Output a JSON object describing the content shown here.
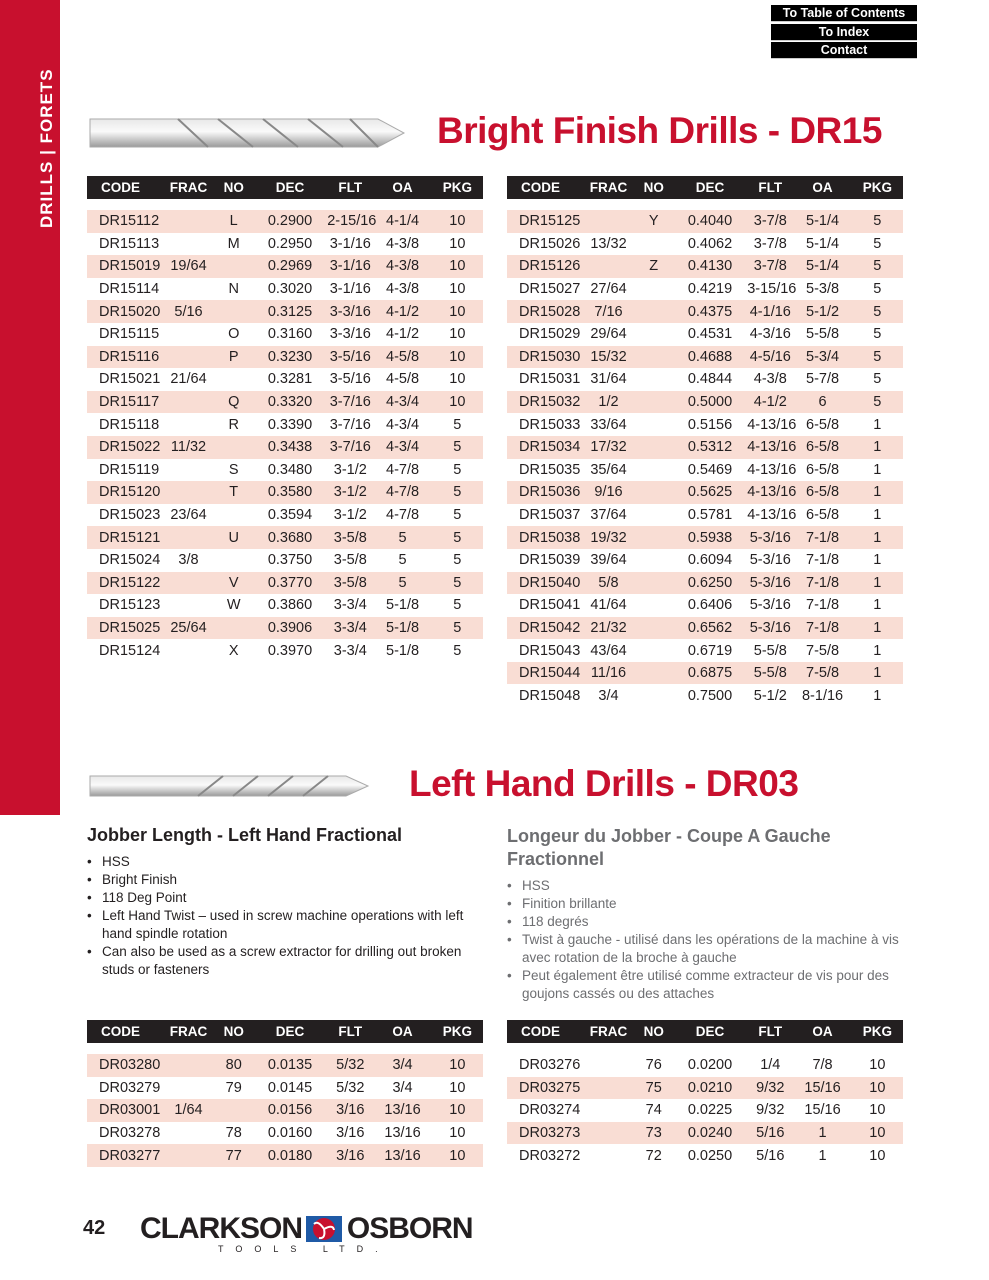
{
  "sidebar": {
    "label": "DRILLS  |  FORETS"
  },
  "nav": {
    "items": [
      "To Table of Contents",
      "To Index",
      "Contact"
    ]
  },
  "section1": {
    "title": "Bright Finish Drills - DR15"
  },
  "section2": {
    "title": "Left Hand Drills - DR03",
    "en": {
      "heading": "Jobber Length - Left Hand Fractional",
      "bullets": [
        "HSS",
        "Bright Finish",
        "118 Deg Point",
        "Left Hand Twist – used in screw machine operations with left hand spindle rotation",
        "Can also be used as a screw extractor for drilling out broken studs or fasteners"
      ]
    },
    "fr": {
      "heading": "Longeur du Jobber - Coupe A Gauche Fractionnel",
      "bullets": [
        "HSS",
        "Finition brillante",
        "118 degrés",
        "Twist à gauche - utilisé dans les opérations de la machine à vis avec rotation de la broche à gauche",
        "Peut également être utilisé comme extracteur de vis pour des goujons cassés ou des attaches"
      ]
    }
  },
  "columns": [
    "CODE",
    "FRAC",
    "NO",
    "DEC",
    "FLT",
    "OA",
    "PKG"
  ],
  "tables": {
    "dr15_left": [
      [
        "DR15112",
        "",
        "L",
        "0.2900",
        "2-15/16",
        "4-1/4",
        "10"
      ],
      [
        "DR15113",
        "",
        "M",
        "0.2950",
        "3-1/16",
        "4-3/8",
        "10"
      ],
      [
        "DR15019",
        "19/64",
        "",
        "0.2969",
        "3-1/16",
        "4-3/8",
        "10"
      ],
      [
        "DR15114",
        "",
        "N",
        "0.3020",
        "3-1/16",
        "4-3/8",
        "10"
      ],
      [
        "DR15020",
        "5/16",
        "",
        "0.3125",
        "3-3/16",
        "4-1/2",
        "10"
      ],
      [
        "DR15115",
        "",
        "O",
        "0.3160",
        "3-3/16",
        "4-1/2",
        "10"
      ],
      [
        "DR15116",
        "",
        "P",
        "0.3230",
        "3-5/16",
        "4-5/8",
        "10"
      ],
      [
        "DR15021",
        "21/64",
        "",
        "0.3281",
        "3-5/16",
        "4-5/8",
        "10"
      ],
      [
        "DR15117",
        "",
        "Q",
        "0.3320",
        "3-7/16",
        "4-3/4",
        "10"
      ],
      [
        "DR15118",
        "",
        "R",
        "0.3390",
        "3-7/16",
        "4-3/4",
        "5"
      ],
      [
        "DR15022",
        "11/32",
        "",
        "0.3438",
        "3-7/16",
        "4-3/4",
        "5"
      ],
      [
        "DR15119",
        "",
        "S",
        "0.3480",
        "3-1/2",
        "4-7/8",
        "5"
      ],
      [
        "DR15120",
        "",
        "T",
        "0.3580",
        "3-1/2",
        "4-7/8",
        "5"
      ],
      [
        "DR15023",
        "23/64",
        "",
        "0.3594",
        "3-1/2",
        "4-7/8",
        "5"
      ],
      [
        "DR15121",
        "",
        "U",
        "0.3680",
        "3-5/8",
        "5",
        "5"
      ],
      [
        "DR15024",
        "3/8",
        "",
        "0.3750",
        "3-5/8",
        "5",
        "5"
      ],
      [
        "DR15122",
        "",
        "V",
        "0.3770",
        "3-5/8",
        "5",
        "5"
      ],
      [
        "DR15123",
        "",
        "W",
        "0.3860",
        "3-3/4",
        "5-1/8",
        "5"
      ],
      [
        "DR15025",
        "25/64",
        "",
        "0.3906",
        "3-3/4",
        "5-1/8",
        "5"
      ],
      [
        "DR15124",
        "",
        "X",
        "0.3970",
        "3-3/4",
        "5-1/8",
        "5"
      ]
    ],
    "dr15_right": [
      [
        "DR15125",
        "",
        "Y",
        "0.4040",
        "3-7/8",
        "5-1/4",
        "5"
      ],
      [
        "DR15026",
        "13/32",
        "",
        "0.4062",
        "3-7/8",
        "5-1/4",
        "5"
      ],
      [
        "DR15126",
        "",
        "Z",
        "0.4130",
        "3-7/8",
        "5-1/4",
        "5"
      ],
      [
        "DR15027",
        "27/64",
        "",
        "0.4219",
        "3-15/16",
        "5-3/8",
        "5"
      ],
      [
        "DR15028",
        "7/16",
        "",
        "0.4375",
        "4-1/16",
        "5-1/2",
        "5"
      ],
      [
        "DR15029",
        "29/64",
        "",
        "0.4531",
        "4-3/16",
        "5-5/8",
        "5"
      ],
      [
        "DR15030",
        "15/32",
        "",
        "0.4688",
        "4-5/16",
        "5-3/4",
        "5"
      ],
      [
        "DR15031",
        "31/64",
        "",
        "0.4844",
        "4-3/8",
        "5-7/8",
        "5"
      ],
      [
        "DR15032",
        "1/2",
        "",
        "0.5000",
        "4-1/2",
        "6",
        "5"
      ],
      [
        "DR15033",
        "33/64",
        "",
        "0.5156",
        "4-13/16",
        "6-5/8",
        "1"
      ],
      [
        "DR15034",
        "17/32",
        "",
        "0.5312",
        "4-13/16",
        "6-5/8",
        "1"
      ],
      [
        "DR15035",
        "35/64",
        "",
        "0.5469",
        "4-13/16",
        "6-5/8",
        "1"
      ],
      [
        "DR15036",
        "9/16",
        "",
        "0.5625",
        "4-13/16",
        "6-5/8",
        "1"
      ],
      [
        "DR15037",
        "37/64",
        "",
        "0.5781",
        "4-13/16",
        "6-5/8",
        "1"
      ],
      [
        "DR15038",
        "19/32",
        "",
        "0.5938",
        "5-3/16",
        "7-1/8",
        "1"
      ],
      [
        "DR15039",
        "39/64",
        "",
        "0.6094",
        "5-3/16",
        "7-1/8",
        "1"
      ],
      [
        "DR15040",
        "5/8",
        "",
        "0.6250",
        "5-3/16",
        "7-1/8",
        "1"
      ],
      [
        "DR15041",
        "41/64",
        "",
        "0.6406",
        "5-3/16",
        "7-1/8",
        "1"
      ],
      [
        "DR15042",
        "21/32",
        "",
        "0.6562",
        "5-3/16",
        "7-1/8",
        "1"
      ],
      [
        "DR15043",
        "43/64",
        "",
        "0.6719",
        "5-5/8",
        "7-5/8",
        "1"
      ],
      [
        "DR15044",
        "11/16",
        "",
        "0.6875",
        "5-5/8",
        "7-5/8",
        "1"
      ],
      [
        "DR15048",
        "3/4",
        "",
        "0.7500",
        "5-1/2",
        "8-1/16",
        "1"
      ]
    ],
    "dr03_left": [
      [
        "DR03280",
        "",
        "80",
        "0.0135",
        "5/32",
        "3/4",
        "10"
      ],
      [
        "DR03279",
        "",
        "79",
        "0.0145",
        "5/32",
        "3/4",
        "10"
      ],
      [
        "DR03001",
        "1/64",
        "",
        "0.0156",
        "3/16",
        "13/16",
        "10"
      ],
      [
        "DR03278",
        "",
        "78",
        "0.0160",
        "3/16",
        "13/16",
        "10"
      ],
      [
        "DR03277",
        "",
        "77",
        "0.0180",
        "3/16",
        "13/16",
        "10"
      ]
    ],
    "dr03_right": [
      [
        "DR03276",
        "",
        "76",
        "0.0200",
        "1/4",
        "7/8",
        "10"
      ],
      [
        "DR03275",
        "",
        "75",
        "0.0210",
        "9/32",
        "15/16",
        "10"
      ],
      [
        "DR03274",
        "",
        "74",
        "0.0225",
        "9/32",
        "15/16",
        "10"
      ],
      [
        "DR03273",
        "",
        "73",
        "0.0240",
        "5/16",
        "1",
        "10"
      ],
      [
        "DR03272",
        "",
        "72",
        "0.0250",
        "5/16",
        "1",
        "10"
      ]
    ]
  },
  "footer": {
    "page_number": "42",
    "logo_left": "CLARKSON",
    "logo_right": "OSBORN",
    "logo_tagline": "TOOLS LTD."
  },
  "colors": {
    "accent_red": "#c8102e",
    "row_shade": "#f9ddd4",
    "header_black": "#231f20"
  }
}
